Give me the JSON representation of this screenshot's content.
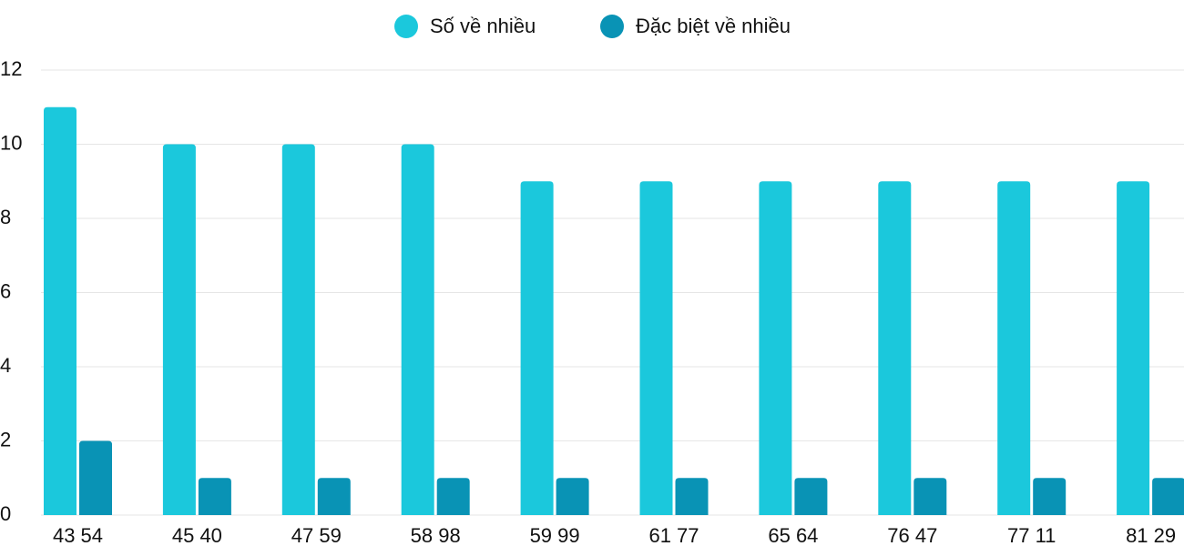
{
  "chart_data": {
    "type": "bar",
    "categories": [
      "43 54",
      "45 40",
      "47 59",
      "58 98",
      "59 99",
      "61 77",
      "65 64",
      "76 47",
      "77 11",
      "81 29"
    ],
    "series": [
      {
        "name": "Số về nhiều",
        "color": "#1bc8dc",
        "values": [
          11,
          10,
          10,
          10,
          9,
          9,
          9,
          9,
          9,
          9
        ]
      },
      {
        "name": "Đặc biệt về nhiều",
        "color": "#0993b5",
        "values": [
          2,
          1,
          1,
          1,
          1,
          1,
          1,
          1,
          1,
          1
        ]
      }
    ],
    "ylim": [
      0,
      12
    ],
    "yticks": [
      0,
      2,
      4,
      6,
      8,
      10,
      12
    ],
    "grid": true,
    "legend": "top"
  }
}
